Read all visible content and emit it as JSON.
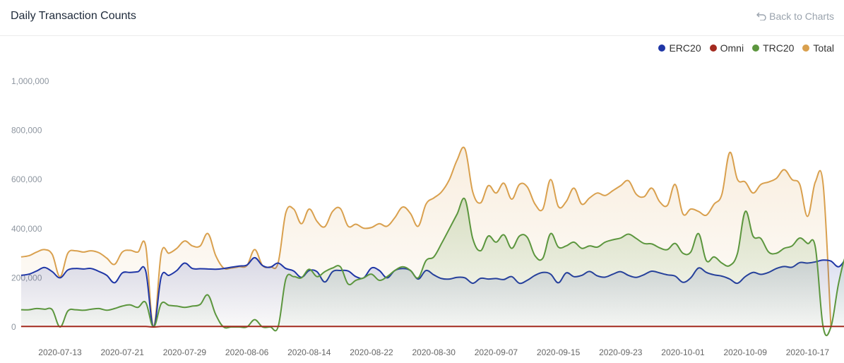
{
  "header": {
    "title": "Daily Transaction Counts",
    "back_label": "Back to Charts"
  },
  "colors": {
    "ERC20": "#1f36a6",
    "Omni": "#a32a1f",
    "TRC20": "#5c963e",
    "Total": "#d9a04e"
  },
  "chart_data": {
    "type": "area",
    "title": "Daily Transaction Counts",
    "xlabel": "",
    "ylabel": "",
    "ylim": [
      0,
      1000000
    ],
    "yticks": [
      0,
      200000,
      400000,
      600000,
      800000,
      1000000
    ],
    "ytick_labels": [
      "0",
      "200,000",
      "400,000",
      "600,000",
      "800,000",
      "1,000,000"
    ],
    "xtick_labels": [
      "2020-07-13",
      "2020-07-21",
      "2020-07-29",
      "2020-08-06",
      "2020-08-14",
      "2020-08-22",
      "2020-08-30",
      "2020-09-07",
      "2020-09-15",
      "2020-09-23",
      "2020-10-01",
      "2020-10-09",
      "2020-10-17"
    ],
    "grid": false,
    "legend_position": "top-right",
    "start_date": "2020-07-08",
    "series": [
      {
        "name": "ERC20",
        "values": [
          210000,
          215000,
          228000,
          242000,
          225000,
          200000,
          232000,
          238000,
          236000,
          238000,
          226000,
          210000,
          180000,
          220000,
          222000,
          225000,
          228000,
          0,
          205000,
          210000,
          230000,
          260000,
          238000,
          237000,
          236000,
          235000,
          238000,
          243000,
          248000,
          252000,
          282000,
          250000,
          243000,
          260000,
          238000,
          228000,
          202000,
          230000,
          225000,
          183000,
          225000,
          230000,
          228000,
          205000,
          200000,
          240000,
          230000,
          200000,
          230000,
          238000,
          230000,
          195000,
          230000,
          212000,
          197000,
          195000,
          202000,
          200000,
          178000,
          198000,
          195000,
          197000,
          193000,
          205000,
          178000,
          190000,
          210000,
          222000,
          215000,
          180000,
          220000,
          205000,
          210000,
          226000,
          208000,
          203000,
          215000,
          225000,
          210000,
          202000,
          213000,
          227000,
          220000,
          212000,
          207000,
          182000,
          200000,
          240000,
          222000,
          212000,
          207000,
          195000,
          178000,
          205000,
          222000,
          214000,
          222000,
          238000,
          246000,
          243000,
          262000,
          260000,
          265000,
          272000,
          268000,
          245000,
          278000,
          282000,
          278000
        ]
      },
      {
        "name": "Omni",
        "values": [
          2000,
          2000,
          2000,
          2000,
          2000,
          2000,
          2000,
          2000,
          2000,
          2000,
          2000,
          2000,
          2000,
          2000,
          2000,
          2000,
          2000,
          0,
          2000,
          2000,
          2000,
          2000,
          2000,
          2000,
          2000,
          2000,
          2000,
          2000,
          2000,
          2000,
          2000,
          2000,
          2000,
          2000,
          2000,
          2000,
          2000,
          2000,
          2000,
          2000,
          2000,
          2000,
          2000,
          2000,
          2000,
          2000,
          2000,
          2000,
          2000,
          2000,
          2000,
          2000,
          2000,
          2000,
          2000,
          2000,
          2000,
          2000,
          2000,
          2000,
          2000,
          2000,
          2000,
          2000,
          2000,
          2000,
          2000,
          2000,
          2000,
          2000,
          2000,
          2000,
          2000,
          2000,
          2000,
          2000,
          2000,
          2000,
          2000,
          2000,
          2000,
          2000,
          2000,
          2000,
          2000,
          2000,
          2000,
          2000,
          2000,
          2000,
          2000,
          2000,
          2000,
          2000,
          2000,
          2000,
          2000,
          2000,
          2000,
          2000,
          2000,
          2000,
          2000,
          2000,
          2000,
          2000,
          2000,
          2000,
          2000
        ]
      },
      {
        "name": "TRC20",
        "values": [
          70000,
          70000,
          75000,
          72000,
          70000,
          0,
          65000,
          70000,
          68000,
          72000,
          75000,
          68000,
          75000,
          85000,
          90000,
          80000,
          100000,
          0,
          95000,
          88000,
          85000,
          80000,
          85000,
          92000,
          130000,
          50000,
          0,
          0,
          0,
          0,
          30000,
          0,
          0,
          0,
          195000,
          205000,
          200000,
          235000,
          205000,
          225000,
          240000,
          245000,
          175000,
          190000,
          200000,
          215000,
          190000,
          205000,
          230000,
          245000,
          230000,
          200000,
          270000,
          285000,
          340000,
          400000,
          460000,
          520000,
          360000,
          310000,
          370000,
          345000,
          375000,
          320000,
          370000,
          365000,
          290000,
          280000,
          380000,
          325000,
          330000,
          345000,
          320000,
          330000,
          325000,
          345000,
          355000,
          362000,
          378000,
          360000,
          340000,
          338000,
          322000,
          315000,
          340000,
          300000,
          305000,
          380000,
          270000,
          285000,
          260000,
          250000,
          300000,
          470000,
          370000,
          360000,
          305000,
          300000,
          320000,
          330000,
          362000,
          340000,
          325000,
          0,
          0,
          180000,
          295000,
          285000
        ]
      },
      {
        "name": "Total",
        "values": [
          285000,
          290000,
          305000,
          315000,
          295000,
          205000,
          300000,
          310000,
          305000,
          310000,
          302000,
          280000,
          255000,
          305000,
          312000,
          305000,
          330000,
          0,
          300000,
          300000,
          320000,
          350000,
          330000,
          330000,
          380000,
          290000,
          240000,
          240000,
          245000,
          250000,
          315000,
          250000,
          245000,
          260000,
          465000,
          480000,
          420000,
          480000,
          430000,
          408000,
          470000,
          482000,
          410000,
          418000,
          402000,
          405000,
          420000,
          410000,
          445000,
          488000,
          462000,
          410000,
          500000,
          525000,
          550000,
          600000,
          680000,
          725000,
          550000,
          505000,
          575000,
          545000,
          585000,
          520000,
          580000,
          570000,
          500000,
          480000,
          600000,
          490000,
          510000,
          565000,
          500000,
          525000,
          545000,
          535000,
          555000,
          575000,
          595000,
          540000,
          530000,
          565000,
          510000,
          495000,
          580000,
          460000,
          480000,
          470000,
          455000,
          500000,
          540000,
          710000,
          600000,
          590000,
          545000,
          580000,
          590000,
          605000,
          640000,
          600000,
          580000,
          450000,
          590000,
          580000,
          0
        ]
      }
    ]
  }
}
